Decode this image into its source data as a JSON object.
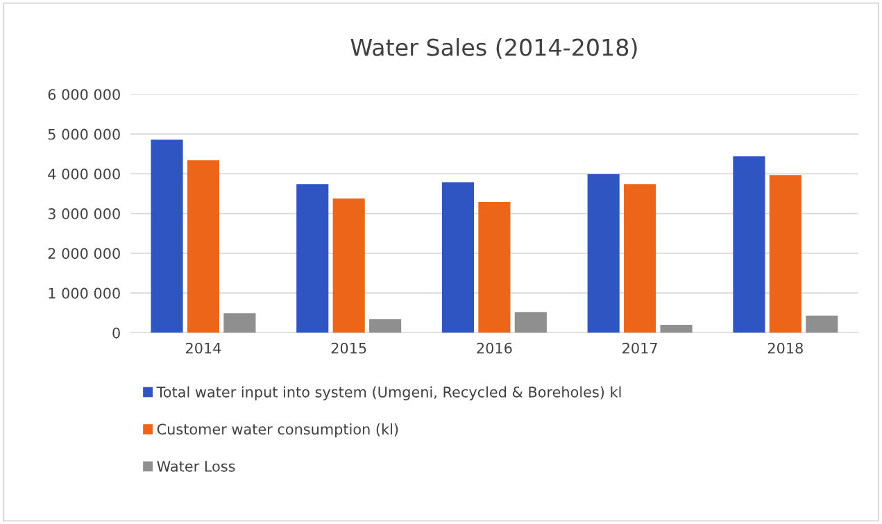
{
  "chart_data": {
    "type": "bar",
    "title": "Water Sales (2014-2018)",
    "categories": [
      "2014",
      "2015",
      "2016",
      "2017",
      "2018"
    ],
    "series": [
      {
        "name": "Total water input into system (Umgeni, Recycled & Boreholes) kl",
        "color": "#2f55c2",
        "values": [
          4860000,
          3740000,
          3790000,
          3990000,
          4440000
        ]
      },
      {
        "name": "Customer water consumption (kl)",
        "color": "#ec6519",
        "values": [
          4340000,
          3380000,
          3290000,
          3740000,
          3970000
        ]
      },
      {
        "name": "Water Loss",
        "color": "#8f8f8f",
        "values": [
          490000,
          340000,
          520000,
          200000,
          430000
        ]
      }
    ],
    "ylim": [
      0,
      6000000
    ],
    "yticks": [
      {
        "value": 0,
        "label": "0"
      },
      {
        "value": 1000000,
        "label": "1 000 000"
      },
      {
        "value": 2000000,
        "label": "2 000 000"
      },
      {
        "value": 3000000,
        "label": "3 000 000"
      },
      {
        "value": 4000000,
        "label": "4 000 000"
      },
      {
        "value": 5000000,
        "label": "5 000 000"
      },
      {
        "value": 6000000,
        "label": "6 000 000"
      }
    ],
    "grid": "y",
    "legend": "bottom"
  }
}
